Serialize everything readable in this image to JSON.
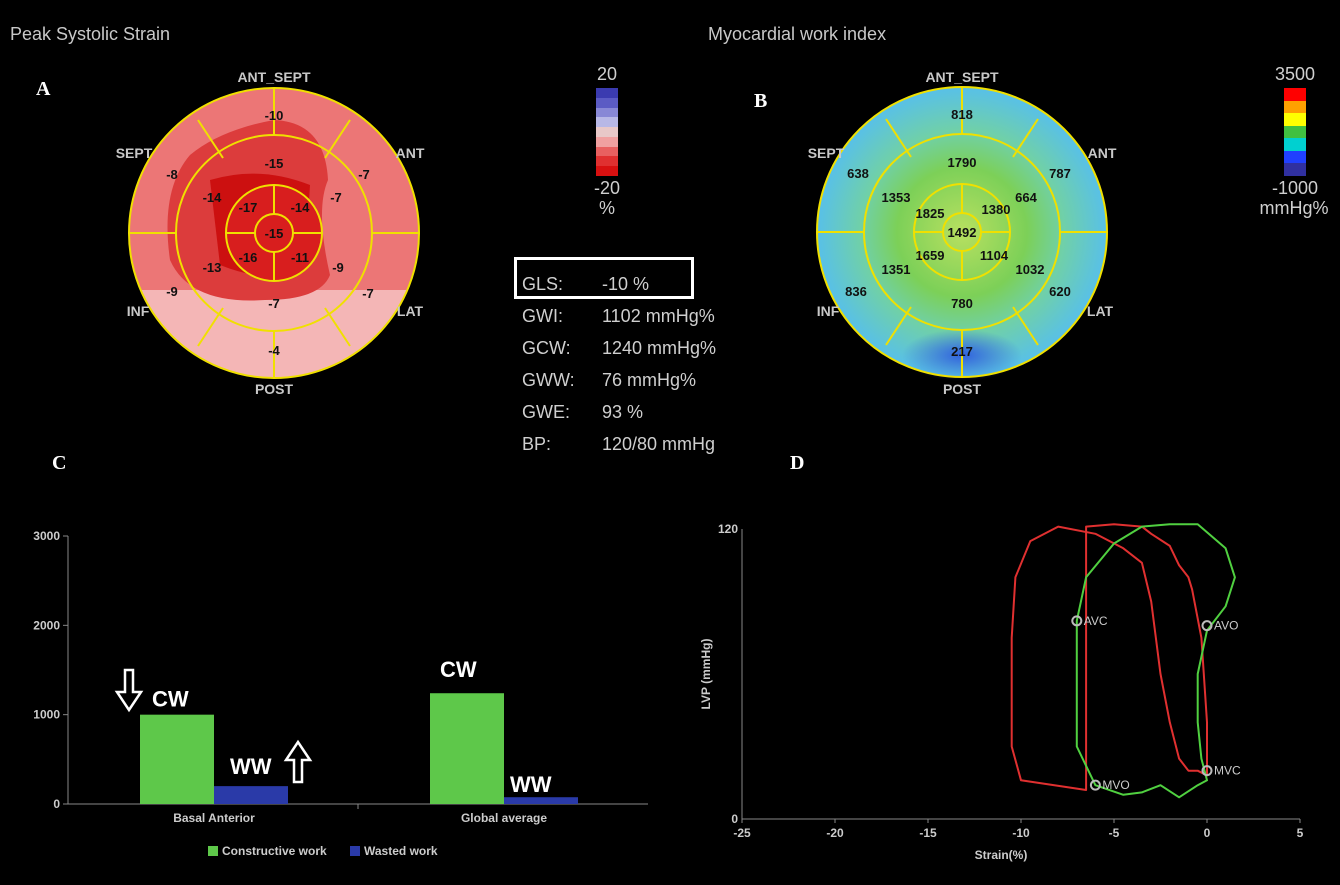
{
  "titles": {
    "left": "Peak Systolic Strain",
    "right": "Myocardial work index"
  },
  "panel_letters": {
    "a": "A",
    "b": "B",
    "c": "C",
    "d": "D"
  },
  "bullseye_labels": {
    "ant_sept": "ANT_SEPT",
    "ant": "ANT",
    "lat": "LAT",
    "post": "POST",
    "inf": "INF",
    "sept": "SEPT"
  },
  "strain_scale": {
    "max": "20",
    "min": "-20",
    "unit": "%",
    "colors": [
      "#3b3bb0",
      "#5b5bc4",
      "#8888d6",
      "#b8b8e6",
      "#e8c8c8",
      "#f0a0a0",
      "#e86060",
      "#e03030",
      "#d81010"
    ]
  },
  "work_scale": {
    "max": "3500",
    "min": "-1000",
    "unit": "mmHg%",
    "colors": [
      "#ff0000",
      "#ffa000",
      "#ffff00",
      "#40c040",
      "#00d0d0",
      "#2040ff",
      "#3030a0"
    ]
  },
  "strain_values": {
    "basal": [
      "-10",
      "-7",
      "-7",
      "-4",
      "-9",
      "-8"
    ],
    "mid": [
      "-15",
      "-7",
      "-9",
      "-7",
      "-13",
      "-14"
    ],
    "apical": [
      "-14",
      "-11",
      "-16",
      "-17"
    ],
    "apex": "-15"
  },
  "work_values": {
    "basal": [
      "818",
      "787",
      "620",
      "217",
      "836",
      "638"
    ],
    "mid": [
      "1790",
      "664",
      "1032",
      "780",
      "1351",
      "1353"
    ],
    "apical": [
      "1380",
      "1104",
      "1659",
      "1825"
    ],
    "apex": "1492"
  },
  "metrics": [
    {
      "label": "GLS:",
      "value": "-10 %"
    },
    {
      "label": "GWI:",
      "value": "1102 mmHg%"
    },
    {
      "label": "GCW:",
      "value": "1240 mmHg%"
    },
    {
      "label": "GWW:",
      "value": "76 mmHg%"
    },
    {
      "label": "GWE:",
      "value": "93 %"
    },
    {
      "label": "BP:",
      "value": "120/80 mmHg"
    }
  ],
  "chart_data": [
    {
      "type": "bar",
      "categories": [
        "Basal Anterior",
        "Global average"
      ],
      "series": [
        {
          "name": "Constructive work",
          "values": [
            1000,
            1240
          ],
          "color": "#5ec84a"
        },
        {
          "name": "Wasted work",
          "values": [
            200,
            76
          ],
          "color": "#2a3aa8"
        }
      ],
      "ylim": [
        0,
        3000
      ],
      "yticks": [
        "0",
        "1000",
        "2000",
        "3000"
      ],
      "legend_position": "bottom",
      "annotations": {
        "cw": "CW",
        "ww": "WW"
      }
    },
    {
      "type": "line",
      "xlabel": "Strain(%)",
      "ylabel": "LVP (mmHg)",
      "xlim": [
        -25,
        5
      ],
      "ylim": [
        0,
        120
      ],
      "xticks": [
        "-25",
        "-20",
        "-15",
        "-10",
        "-5",
        "0",
        "5"
      ],
      "yticks": [
        "0",
        "120"
      ],
      "series": [
        {
          "color": "#e03030",
          "x": [
            -6.5,
            -10.0,
            -10.5,
            -10.5,
            -10.5,
            -10.3,
            -9.5,
            -8.0,
            -6.0,
            -4.5,
            -3.5,
            -3.0,
            -2.5,
            -2.0,
            -1.5,
            -1.0,
            -0.5,
            0.0,
            0.0,
            -0.3,
            -0.8,
            -1.0,
            -1.5,
            -2.0,
            -3.0,
            -3.5,
            -5.0,
            -6.5
          ],
          "y": [
            12,
            16,
            30,
            50,
            75,
            100,
            115,
            121,
            118,
            112,
            106,
            90,
            60,
            40,
            25,
            20,
            20,
            18,
            40,
            75,
            95,
            100,
            105,
            113,
            118,
            121,
            122,
            121
          ]
        },
        {
          "color": "#50d040",
          "x": [
            -6.0,
            -7.0,
            -7.0,
            -7.0,
            -7.0,
            -6.5,
            -5.0,
            -3.5,
            -2.0,
            -0.5,
            1.0,
            1.5,
            1.0,
            0.0,
            -0.5,
            -0.5,
            -0.3,
            0.0,
            -0.5,
            -1.5,
            -2.5,
            -3.5,
            -4.5,
            -6.0
          ],
          "y": [
            14,
            30,
            50,
            70,
            82,
            100,
            114,
            121,
            122,
            122,
            112,
            100,
            88,
            78,
            60,
            40,
            25,
            16,
            14,
            9,
            14,
            11,
            10,
            14
          ]
        }
      ],
      "markers": [
        {
          "label": "AVC",
          "x": -7.0,
          "y": 82
        },
        {
          "label": "AVO",
          "x": 0.0,
          "y": 80
        },
        {
          "label": "MVC",
          "x": 0.0,
          "y": 20
        },
        {
          "label": "MVO",
          "x": -6.0,
          "y": 14
        }
      ]
    }
  ]
}
